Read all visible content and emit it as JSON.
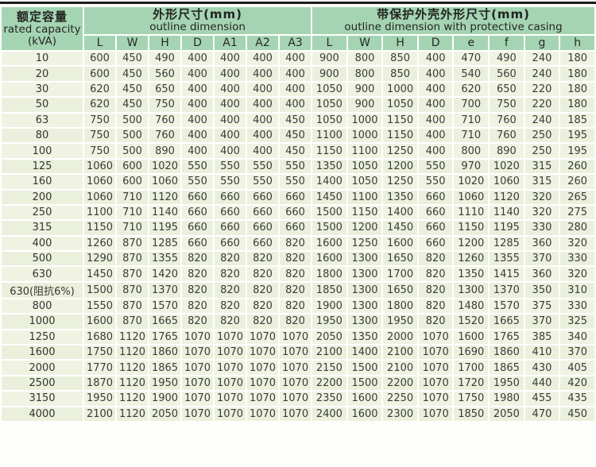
{
  "colors": {
    "header_green": "#a5d4b2",
    "row_light": "#f0f3e2",
    "row_alt": "#ebf0dc",
    "top_rule": "#1c1c1c",
    "grid_white": "#ffffff"
  },
  "table": {
    "capacity_header": {
      "zh": "额定容量",
      "en": "rated capacity",
      "unit": "(kVA)"
    },
    "group_outline": {
      "zh": "外形尺寸(mm)",
      "en": "outline dimension",
      "columns": [
        "L",
        "W",
        "H",
        "D",
        "A1",
        "A2",
        "A3"
      ]
    },
    "group_casing": {
      "zh": "带保护外壳外形尺寸(mm)",
      "en": "outline dimension with protective casing",
      "columns": [
        "L",
        "W",
        "H",
        "D",
        "e",
        "f",
        "g",
        "h"
      ]
    },
    "rows": [
      {
        "capacity": "10",
        "outline": [
          600,
          450,
          490,
          400,
          400,
          400,
          400
        ],
        "casing": [
          900,
          800,
          850,
          400,
          470,
          490,
          240,
          180
        ]
      },
      {
        "capacity": "20",
        "outline": [
          600,
          450,
          560,
          400,
          400,
          400,
          400
        ],
        "casing": [
          900,
          800,
          850,
          400,
          540,
          560,
          240,
          180
        ]
      },
      {
        "capacity": "30",
        "outline": [
          620,
          450,
          650,
          400,
          400,
          400,
          400
        ],
        "casing": [
          1050,
          900,
          1000,
          400,
          620,
          650,
          220,
          180
        ]
      },
      {
        "capacity": "50",
        "outline": [
          620,
          450,
          750,
          400,
          400,
          400,
          400
        ],
        "casing": [
          1050,
          900,
          1050,
          400,
          700,
          750,
          220,
          180
        ]
      },
      {
        "capacity": "63",
        "outline": [
          750,
          500,
          760,
          400,
          400,
          400,
          450
        ],
        "casing": [
          1050,
          1000,
          1150,
          400,
          710,
          760,
          240,
          185
        ]
      },
      {
        "capacity": "80",
        "outline": [
          750,
          500,
          760,
          400,
          400,
          400,
          450
        ],
        "casing": [
          1100,
          1000,
          1150,
          400,
          710,
          760,
          250,
          195
        ]
      },
      {
        "capacity": "100",
        "outline": [
          750,
          500,
          890,
          400,
          400,
          400,
          450
        ],
        "casing": [
          1150,
          1100,
          1250,
          400,
          800,
          890,
          250,
          195
        ]
      },
      {
        "capacity": "125",
        "outline": [
          1060,
          600,
          1020,
          550,
          550,
          550,
          550
        ],
        "casing": [
          1350,
          1050,
          1200,
          550,
          970,
          1020,
          315,
          260
        ]
      },
      {
        "capacity": "160",
        "outline": [
          1060,
          600,
          1060,
          550,
          550,
          550,
          550
        ],
        "casing": [
          1400,
          1050,
          1250,
          550,
          1020,
          1060,
          315,
          260
        ]
      },
      {
        "capacity": "200",
        "outline": [
          1060,
          710,
          1120,
          660,
          660,
          660,
          660
        ],
        "casing": [
          1450,
          1100,
          1350,
          660,
          1060,
          1120,
          320,
          265
        ]
      },
      {
        "capacity": "250",
        "outline": [
          1100,
          710,
          1140,
          660,
          660,
          660,
          660
        ],
        "casing": [
          1500,
          1150,
          1400,
          660,
          1110,
          1140,
          320,
          275
        ]
      },
      {
        "capacity": "315",
        "outline": [
          1150,
          710,
          1195,
          660,
          660,
          660,
          660
        ],
        "casing": [
          1500,
          1200,
          1450,
          660,
          1150,
          1195,
          330,
          280
        ]
      },
      {
        "capacity": "400",
        "outline": [
          1260,
          870,
          1285,
          660,
          660,
          660,
          820
        ],
        "casing": [
          1600,
          1250,
          1600,
          660,
          1200,
          1285,
          360,
          320
        ]
      },
      {
        "capacity": "500",
        "outline": [
          1290,
          870,
          1355,
          820,
          820,
          820,
          820
        ],
        "casing": [
          1600,
          1300,
          1650,
          820,
          1260,
          1355,
          370,
          330
        ]
      },
      {
        "capacity": "630",
        "outline": [
          1450,
          870,
          1420,
          820,
          820,
          820,
          820
        ],
        "casing": [
          1800,
          1300,
          1700,
          820,
          1350,
          1415,
          360,
          320
        ]
      },
      {
        "capacity": "630(阻抗6%)",
        "outline": [
          1500,
          870,
          1370,
          820,
          820,
          820,
          820
        ],
        "casing": [
          1850,
          1300,
          1650,
          820,
          1300,
          1370,
          350,
          310
        ]
      },
      {
        "capacity": "800",
        "outline": [
          1550,
          870,
          1570,
          820,
          820,
          820,
          820
        ],
        "casing": [
          1900,
          1300,
          1800,
          820,
          1480,
          1570,
          375,
          330
        ]
      },
      {
        "capacity": "1000",
        "outline": [
          1600,
          870,
          1665,
          820,
          820,
          820,
          820
        ],
        "casing": [
          1950,
          1300,
          1950,
          820,
          1520,
          1665,
          370,
          325
        ]
      },
      {
        "capacity": "1250",
        "outline": [
          1680,
          1120,
          1765,
          1070,
          1070,
          1070,
          1070
        ],
        "casing": [
          2050,
          1350,
          2000,
          1070,
          1600,
          1765,
          385,
          340
        ]
      },
      {
        "capacity": "1600",
        "outline": [
          1750,
          1120,
          1860,
          1070,
          1070,
          1070,
          1070
        ],
        "casing": [
          2100,
          1400,
          2100,
          1070,
          1690,
          1860,
          410,
          370
        ]
      },
      {
        "capacity": "2000",
        "outline": [
          1770,
          1120,
          1865,
          1070,
          1070,
          1070,
          1070
        ],
        "casing": [
          2150,
          1500,
          2100,
          1070,
          1700,
          1865,
          430,
          405
        ]
      },
      {
        "capacity": "2500",
        "outline": [
          1870,
          1120,
          1950,
          1070,
          1070,
          1070,
          1070
        ],
        "casing": [
          2200,
          1500,
          2200,
          1070,
          1720,
          1950,
          440,
          420
        ]
      },
      {
        "capacity": "3150",
        "outline": [
          1950,
          1120,
          1900,
          1070,
          1070,
          1070,
          1070
        ],
        "casing": [
          2350,
          1600,
          2250,
          1070,
          1750,
          1980,
          455,
          435
        ]
      },
      {
        "capacity": "4000",
        "outline": [
          2100,
          1120,
          2050,
          1070,
          1070,
          1070,
          1070
        ],
        "casing": [
          2400,
          1600,
          2300,
          1070,
          1850,
          2050,
          470,
          450
        ]
      }
    ]
  }
}
